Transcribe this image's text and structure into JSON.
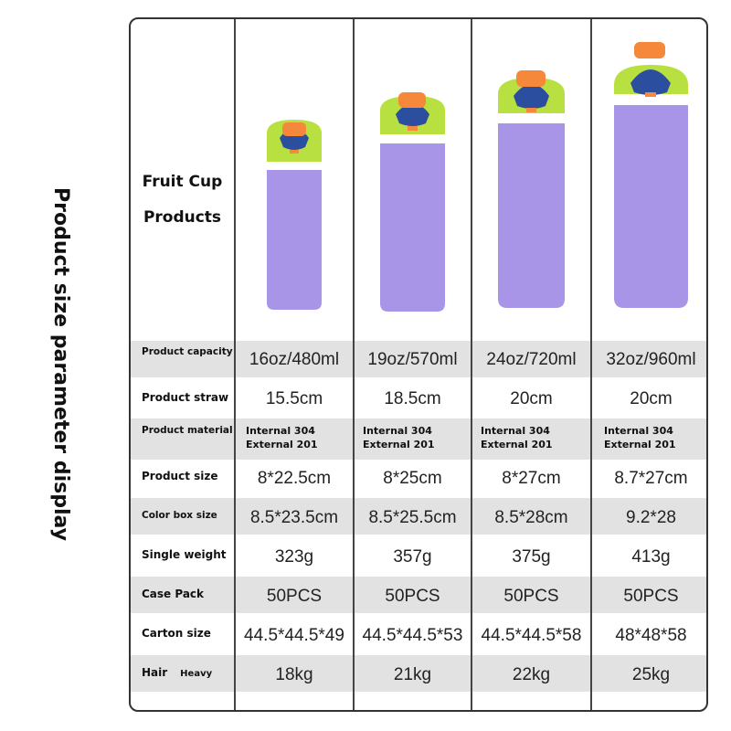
{
  "side_title": "Product size parameter display",
  "header": {
    "line1": "Fruit Cup",
    "line2": "Products"
  },
  "bottle_colors": {
    "body": "#a895e8",
    "lid": "#b8e040",
    "accent": "#2b4f9e",
    "cap": "#f5883a",
    "band": "#ffffff"
  },
  "rows": [
    {
      "label": "Product capacity",
      "values": [
        "16oz/480ml",
        "19oz/570ml",
        "24oz/720ml",
        "32oz/960ml"
      ]
    },
    {
      "label": "Product straw",
      "values": [
        "15.5cm",
        "18.5cm",
        "20cm",
        "20cm"
      ]
    },
    {
      "label": "Product material",
      "values_line1": [
        "Internal 304",
        "Internal 304",
        "Internal 304",
        "Internal 304"
      ],
      "values_line2": [
        "External 201",
        "External 201",
        "External 201",
        "External 201"
      ]
    },
    {
      "label": "Product size",
      "values": [
        "8*22.5cm",
        "8*25cm",
        "8*27cm",
        "8.7*27cm"
      ]
    },
    {
      "label": "Color box size",
      "values": [
        "8.5*23.5cm",
        "8.5*25.5cm",
        "8.5*28cm",
        "9.2*28"
      ]
    },
    {
      "label": "Single weight",
      "values": [
        "323g",
        "357g",
        "375g",
        "413g"
      ]
    },
    {
      "label": "Case Pack",
      "values": [
        "50PCS",
        "50PCS",
        "50PCS",
        "50PCS"
      ]
    },
    {
      "label": "Carton size",
      "values": [
        "44.5*44.5*49",
        "44.5*44.5*53",
        "44.5*44.5*58",
        "48*48*58"
      ]
    },
    {
      "label": "Hair",
      "label_extra": "Heavy",
      "values": [
        "18kg",
        "21kg",
        "22kg",
        "25kg"
      ]
    }
  ]
}
